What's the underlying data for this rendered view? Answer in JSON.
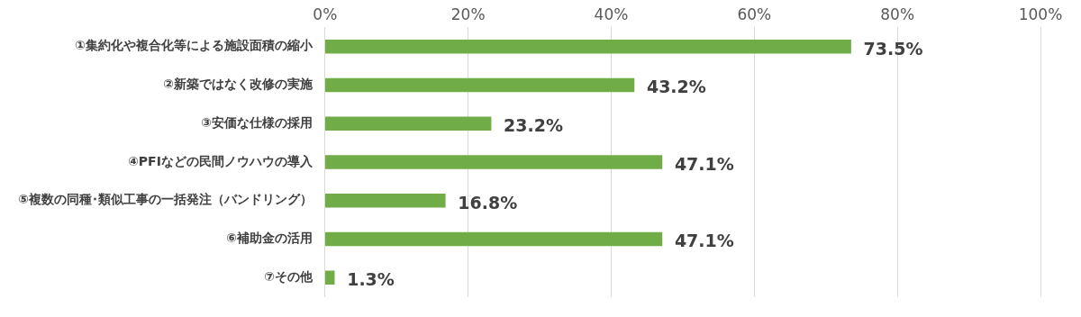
{
  "chart_data": {
    "type": "bar",
    "orientation": "horizontal",
    "categories": [
      "①集約化や複合化等による施設面積の縮小",
      "②新築ではなく改修の実施",
      "③安価な仕様の採用",
      "④PFIなどの民間ノウハウの導入",
      "⑤複数の同種･類似工事の一括発注（バンドリング）",
      "⑥補助金の活用",
      "⑦その他"
    ],
    "values": [
      73.5,
      43.2,
      23.2,
      47.1,
      16.8,
      47.1,
      1.3
    ],
    "value_labels": [
      "73.5%",
      "43.2%",
      "23.2%",
      "47.1%",
      "16.8%",
      "47.1%",
      "1.3%"
    ],
    "color": "#70ad47",
    "xlim": [
      0,
      100
    ],
    "xticks": [
      {
        "value": 0,
        "label": "0%"
      },
      {
        "value": 20,
        "label": "20%"
      },
      {
        "value": 40,
        "label": "40%"
      },
      {
        "value": 60,
        "label": "60%"
      },
      {
        "value": 80,
        "label": "80%"
      },
      {
        "value": 100,
        "label": "100%"
      }
    ],
    "grid": "x",
    "legend": false
  }
}
